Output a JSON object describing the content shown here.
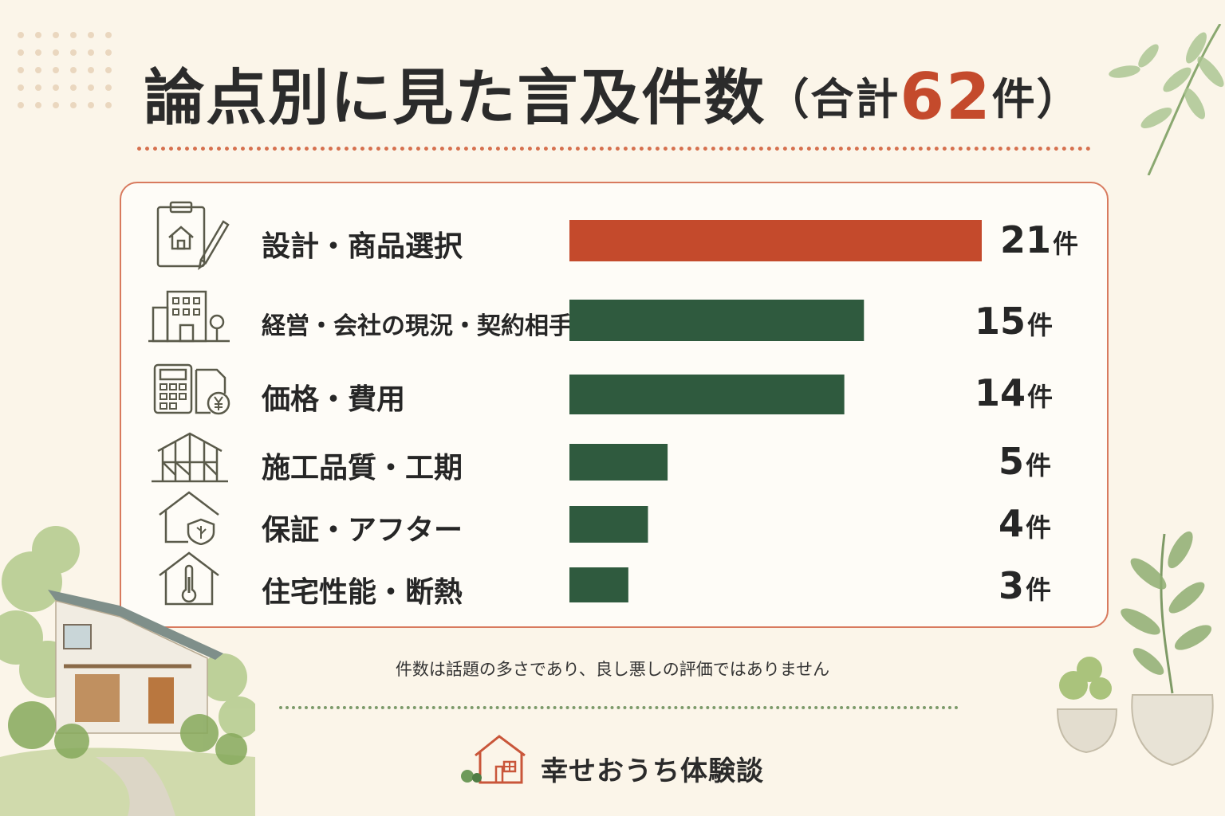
{
  "title": {
    "main": "論点別に見た言及件数",
    "paren_open": "（",
    "total_prefix": "合計",
    "total_value": "62",
    "total_unit": "件",
    "paren_close": "）"
  },
  "chart_data": {
    "type": "bar",
    "orientation": "horizontal",
    "categories": [
      "設計・商品選択",
      "経営・会社の現況・契約相手",
      "価格・費用",
      "施工品質・工期",
      "保証・アフター",
      "住宅性能・断熱"
    ],
    "values": [
      21,
      15,
      14,
      5,
      4,
      3
    ],
    "unit": "件",
    "highlight_color": "#c44a2c",
    "bar_color": "#2f5a3e",
    "grid": false,
    "legend": "none"
  },
  "rows": [
    {
      "label": "設計・商品選択",
      "value": "21",
      "unit": "件",
      "icon": "clipboard-pencil-icon"
    },
    {
      "label": "経営・会社の現況・契約相手",
      "value": "15",
      "unit": "件",
      "icon": "office-building-icon"
    },
    {
      "label": "価格・費用",
      "value": "14",
      "unit": "件",
      "icon": "calculator-yen-icon"
    },
    {
      "label": "施工品質・工期",
      "value": "5",
      "unit": "件",
      "icon": "house-frame-icon"
    },
    {
      "label": "保証・アフター",
      "value": "4",
      "unit": "件",
      "icon": "house-shield-icon"
    },
    {
      "label": "住宅性能・断熱",
      "value": "3",
      "unit": "件",
      "icon": "house-thermometer-icon"
    }
  ],
  "note": "件数は話題の多さであり、良し悪しの評価ではありません",
  "brand": {
    "name": "幸せおうち体験談",
    "icon": "house-logo-icon"
  },
  "colors": {
    "accent": "#c44a2c",
    "bar": "#2f5a3e",
    "background": "#fbf5e9"
  }
}
